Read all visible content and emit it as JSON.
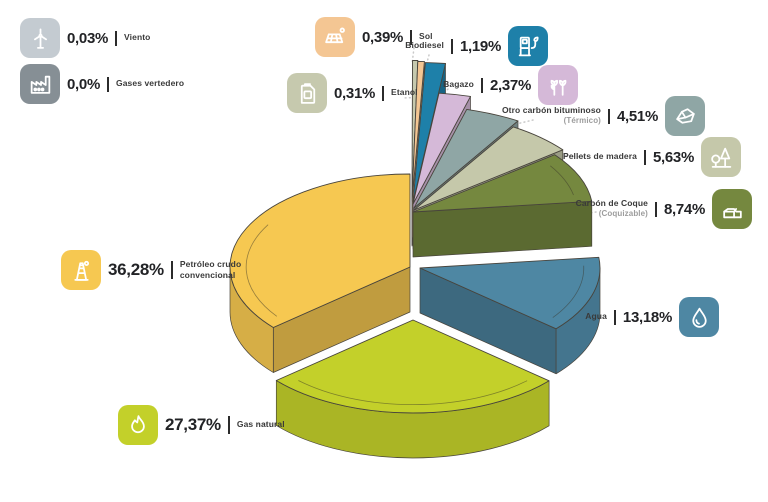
{
  "page": {
    "background": "#ffffff"
  },
  "chart_data": {
    "type": "pie",
    "title": "",
    "unit": "%",
    "decimal_separator": ",",
    "projection": "3d-exploded",
    "slices": [
      {
        "label": "Viento",
        "value": 0.03,
        "display_value": "0,03%",
        "color": "#c4cbd1",
        "icon": "wind-turbine"
      },
      {
        "label": "Gases vertedero",
        "value": 0.0,
        "display_value": "0,0%",
        "color": "#868f95",
        "icon": "factory"
      },
      {
        "label": "Etanol",
        "value": 0.31,
        "display_value": "0,31%",
        "color": "#c6c9ae",
        "icon": "jerrycan"
      },
      {
        "label": "Sol",
        "value": 0.39,
        "display_value": "0,39%",
        "color": "#f4c693",
        "icon": "solar-panel"
      },
      {
        "label": "Biodiesel",
        "value": 1.19,
        "display_value": "1,19%",
        "color": "#1e80a9",
        "icon": "fuel-pump"
      },
      {
        "label": "Bagazo",
        "value": 2.37,
        "display_value": "2,37%",
        "color": "#d5b9d8",
        "icon": "sugarcane"
      },
      {
        "label": "Otro carbón bituminoso",
        "sublabel": "(Térmico)",
        "value": 4.51,
        "display_value": "4,51%",
        "color": "#8fa6a5",
        "icon": "coal-rock"
      },
      {
        "label": "Pellets de madera",
        "value": 5.63,
        "display_value": "5,63%",
        "color": "#c5c8aa",
        "icon": "trees"
      },
      {
        "label": "Carbón de Coque",
        "sublabel": "(Coquizable)",
        "value": 8.74,
        "display_value": "8,74%",
        "color": "#75883f",
        "icon": "coal-blocks"
      },
      {
        "label": "Agua",
        "value": 13.18,
        "display_value": "13,18%",
        "color": "#4e87a3",
        "icon": "water-drop"
      },
      {
        "label": "Gas natural",
        "value": 27.37,
        "display_value": "27,37%",
        "color": "#c3d02a",
        "icon": "flame"
      },
      {
        "label": "Petróleo crudo convencional",
        "label_lines": [
          "Petróleo crudo",
          "convencional"
        ],
        "value": 36.28,
        "display_value": "36,28%",
        "color": "#f6c851",
        "icon": "oil-derrick"
      }
    ]
  }
}
